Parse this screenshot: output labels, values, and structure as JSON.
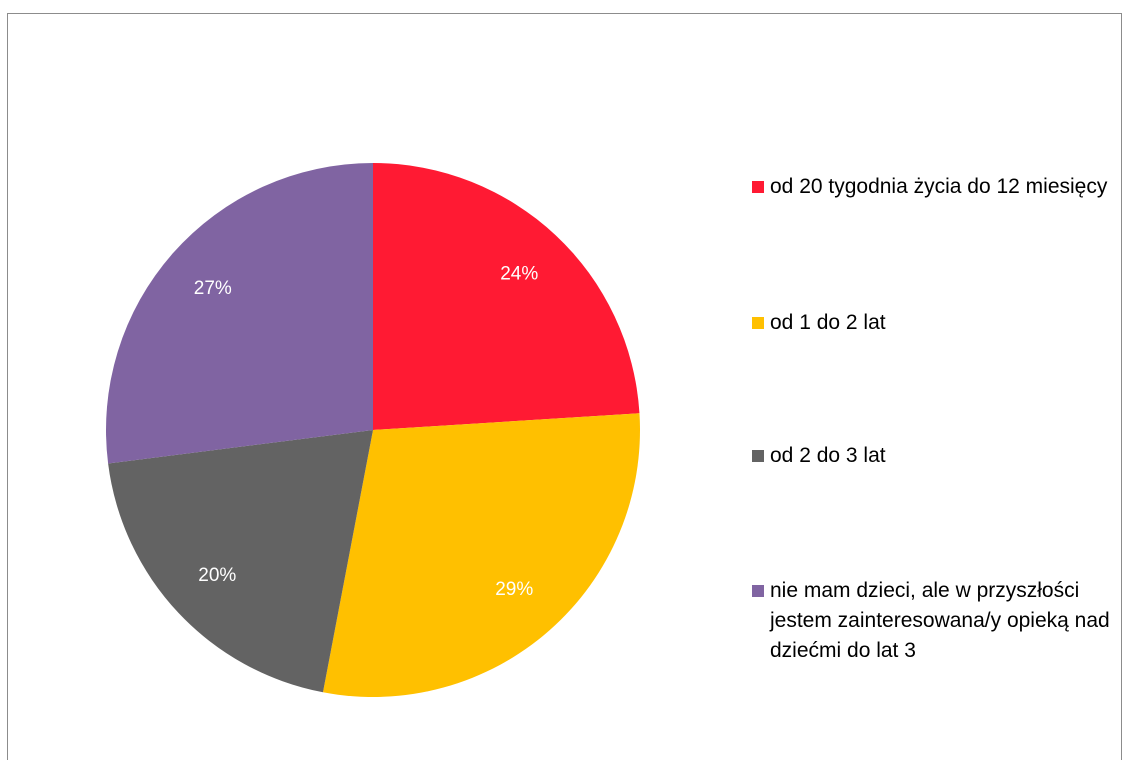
{
  "chart_data": {
    "type": "pie",
    "categories": [
      "od 20 tygodnia życia do 12 miesięcy",
      "od 1 do 2 lat",
      "od 2 do 3 lat",
      "nie mam dzieci, ale w przyszłości jestem zainteresowana/y opieką nad dziećmi do lat 3"
    ],
    "values": [
      24,
      29,
      20,
      27
    ],
    "value_labels": [
      "24%",
      "29%",
      "20%",
      "27%"
    ],
    "colors": [
      "#ff1a33",
      "#ffc000",
      "#636363",
      "#8064a2"
    ]
  }
}
